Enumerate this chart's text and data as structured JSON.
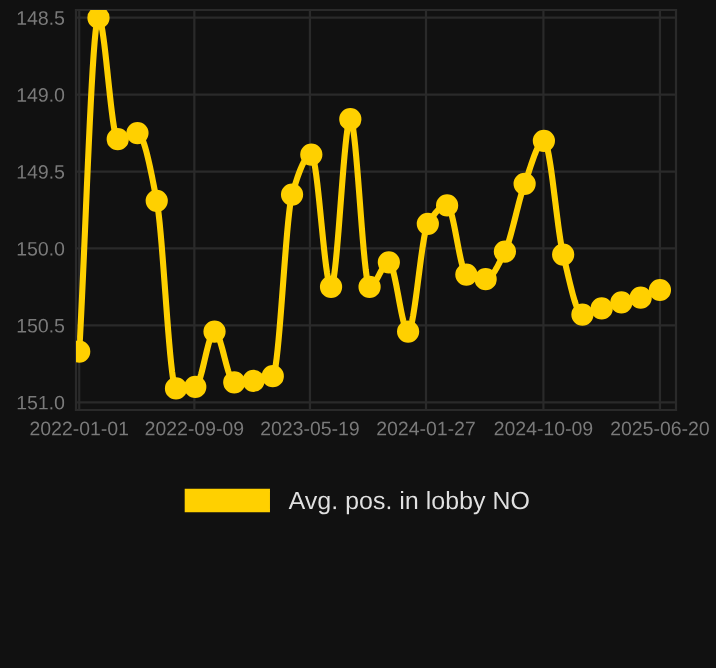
{
  "chart_data": {
    "type": "line",
    "x": [
      "2022-01-01",
      "2022-02-12",
      "2022-03-26",
      "2022-05-08",
      "2022-06-19",
      "2022-07-31",
      "2022-09-11",
      "2022-10-23",
      "2022-12-05",
      "2023-01-16",
      "2023-02-27",
      "2023-04-10",
      "2023-05-22",
      "2023-07-04",
      "2023-08-15",
      "2023-09-26",
      "2023-11-07",
      "2023-12-19",
      "2024-01-31",
      "2024-03-13",
      "2024-04-24",
      "2024-06-05",
      "2024-07-17",
      "2024-08-29",
      "2024-10-10",
      "2024-11-21",
      "2025-01-02",
      "2025-02-13",
      "2025-03-28",
      "2025-05-09",
      "2025-06-20"
    ],
    "series": [
      {
        "name": "Avg. pos. in lobby NO",
        "color": "#ffd000",
        "values": [
          150.67,
          148.5,
          149.29,
          149.25,
          149.69,
          150.91,
          150.9,
          150.54,
          150.87,
          150.86,
          150.83,
          149.65,
          149.39,
          150.25,
          149.16,
          150.25,
          150.09,
          150.54,
          149.84,
          149.72,
          150.17,
          150.2,
          150.02,
          149.58,
          149.3,
          150.04,
          150.43,
          150.39,
          150.35,
          150.32,
          150.27
        ]
      }
    ],
    "xlim": [
      "2021-12-25",
      "2025-07-25"
    ],
    "xticks": [
      {
        "value": "2022-01-01",
        "label": "2022-01-01"
      },
      {
        "value": "2022-09-09",
        "label": "2022-09-09"
      },
      {
        "value": "2023-05-19",
        "label": "2023-05-19"
      },
      {
        "value": "2024-01-27",
        "label": "2024-01-27"
      },
      {
        "value": "2024-10-09",
        "label": "2024-10-09"
      },
      {
        "value": "2025-06-20",
        "label": "2025-06-20"
      }
    ],
    "ylim": [
      151.05,
      148.45
    ],
    "yticks": [
      148.5,
      {
        "value": 149.0,
        "label": "149.0"
      },
      149.5,
      {
        "value": 150.0,
        "label": "150.0"
      },
      150.5,
      {
        "value": 151.0,
        "label": "151.0"
      }
    ],
    "grid": true,
    "legend": "bottom",
    "marker": "circle",
    "line_style": "solid"
  }
}
